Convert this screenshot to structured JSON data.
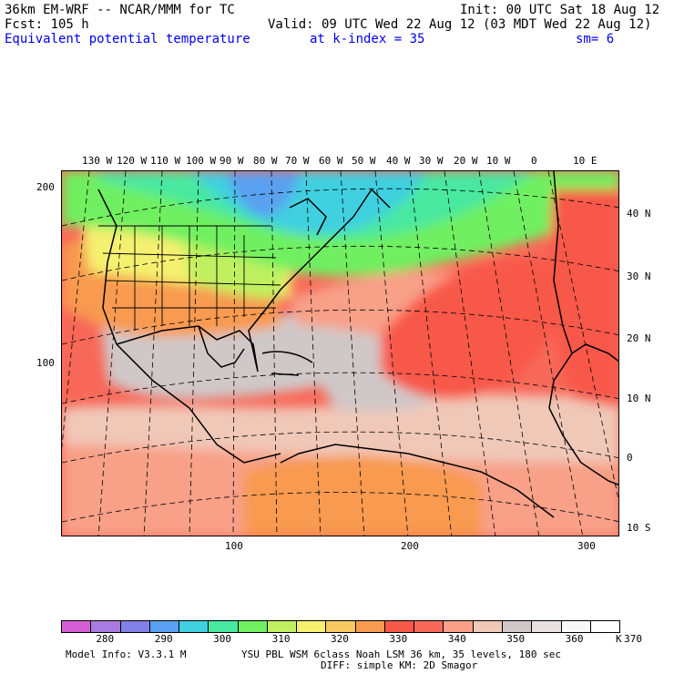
{
  "header": {
    "model": "36km EM-WRF -- NCAR/MMM for TC",
    "init": "Init: 00 UTC Sat 18 Aug 12",
    "fcst": "Fcst:  105 h",
    "valid": "Valid: 09 UTC Wed 22 Aug 12 (03 MDT Wed 22 Aug 12)",
    "field": "Equivalent potential temperature",
    "level": "at k-index =  35",
    "smooth": "sm= 6"
  },
  "map": {
    "lon_labels": [
      "130 W",
      "120 W",
      "110 W",
      "100 W",
      "90 W",
      "80 W",
      "70 W",
      "60 W",
      "50 W",
      "40 W",
      "30 W",
      "20 W",
      "10 W",
      "0",
      "10 E"
    ],
    "lat_labels": [
      "40 N",
      "30 N",
      "20 N",
      "10 N",
      "0",
      "10 S"
    ],
    "y_grid_labels": [
      "200",
      "100"
    ],
    "x_grid_labels": [
      "100",
      "200",
      "300"
    ]
  },
  "colorbar": {
    "colors": [
      "#d45fd4",
      "#a77be0",
      "#8080e6",
      "#5aa0f0",
      "#40d0e0",
      "#48e8a0",
      "#70f060",
      "#c0f060",
      "#f5f070",
      "#f8c860",
      "#f89a50",
      "#f85848",
      "#f86858",
      "#f8a088",
      "#f0c8b8",
      "#d0c8c8",
      "#e6e0e0",
      "#f8f8f8",
      "#ffffff"
    ],
    "labels": [
      "280",
      "290",
      "300",
      "310",
      "320",
      "330",
      "340",
      "350",
      "360",
      "370"
    ],
    "unit": "K"
  },
  "footer": {
    "model_info": "Model Info: V3.3.1 M",
    "physics": "YSU PBL  WSM 6class  Noah LSM  36 km,   35 levels,  180 sec",
    "diffusion": "DIFF: simple KM: 2D Smagor"
  }
}
